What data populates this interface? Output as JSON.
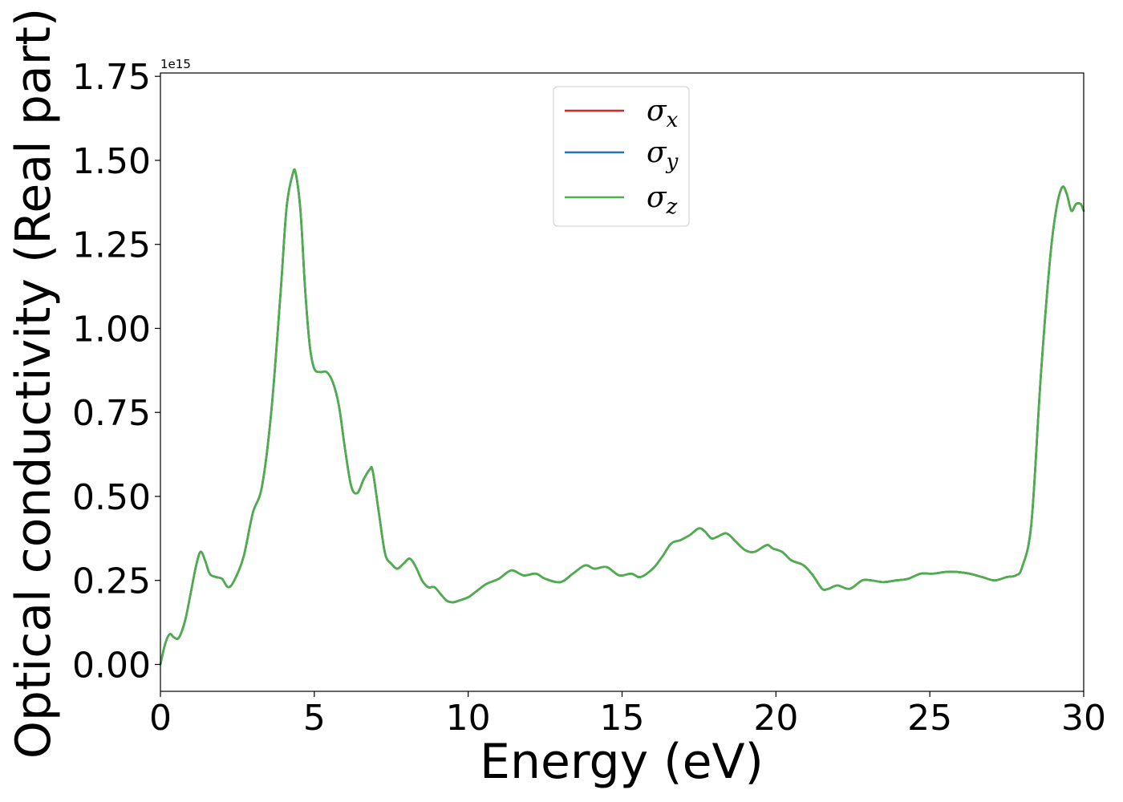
{
  "chart_data": {
    "type": "line",
    "title": "",
    "xlabel": "Energy (eV)",
    "ylabel": "Optical conductivity (Real part)",
    "offset_text": "1e15",
    "xlim": [
      0,
      30
    ],
    "ylim": [
      -0.08,
      1.76
    ],
    "xticks": [
      0,
      5,
      10,
      15,
      20,
      25,
      30
    ],
    "xtick_labels": [
      "0",
      "5",
      "10",
      "15",
      "20",
      "25",
      "30"
    ],
    "yticks": [
      0.0,
      0.25,
      0.5,
      0.75,
      1.0,
      1.25,
      1.5,
      1.75
    ],
    "ytick_labels": [
      "0.00",
      "0.25",
      "0.50",
      "0.75",
      "1.00",
      "1.25",
      "1.50",
      "1.75"
    ],
    "grid": false,
    "legend": {
      "placement": "upper center"
    },
    "y_scale_factor": "1e15",
    "series": [
      {
        "name": "σx",
        "base": "σ",
        "sub": "x",
        "color": "#d62728"
      },
      {
        "name": "σy",
        "base": "σ",
        "sub": "y",
        "color": "#1f77b4"
      },
      {
        "name": "σz",
        "base": "σ",
        "sub": "z",
        "color": "#4daf4a"
      }
    ],
    "x": [
      0.0,
      0.15,
      0.3,
      0.45,
      0.6,
      0.8,
      1.0,
      1.15,
      1.3,
      1.45,
      1.6,
      1.8,
      2.0,
      2.2,
      2.4,
      2.7,
      3.0,
      3.3,
      3.6,
      3.9,
      4.1,
      4.3,
      4.4,
      4.55,
      4.7,
      4.85,
      5.0,
      5.2,
      5.4,
      5.6,
      5.8,
      6.0,
      6.2,
      6.4,
      6.6,
      6.8,
      6.9,
      7.1,
      7.3,
      7.5,
      7.7,
      7.9,
      8.1,
      8.3,
      8.5,
      8.7,
      8.9,
      9.1,
      9.3,
      9.5,
      9.7,
      10.0,
      10.3,
      10.6,
      11.0,
      11.4,
      11.8,
      12.2,
      12.5,
      13.0,
      13.4,
      13.8,
      14.1,
      14.5,
      14.9,
      15.3,
      15.6,
      16.0,
      16.3,
      16.6,
      16.9,
      17.2,
      17.5,
      17.7,
      17.9,
      18.1,
      18.4,
      18.7,
      19.0,
      19.3,
      19.7,
      19.9,
      20.2,
      20.5,
      20.9,
      21.2,
      21.5,
      21.7,
      22.0,
      22.4,
      22.8,
      23.1,
      23.5,
      23.9,
      24.3,
      24.7,
      25.1,
      25.5,
      25.9,
      26.3,
      26.7,
      27.1,
      27.5,
      27.8,
      28.0,
      28.3,
      28.6,
      28.9,
      29.1,
      29.3,
      29.45,
      29.6,
      29.75,
      29.9,
      30.0
    ],
    "y": [
      0.0,
      0.06,
      0.09,
      0.08,
      0.08,
      0.13,
      0.22,
      0.29,
      0.335,
      0.31,
      0.27,
      0.26,
      0.255,
      0.23,
      0.25,
      0.32,
      0.45,
      0.53,
      0.75,
      1.1,
      1.36,
      1.46,
      1.46,
      1.35,
      1.12,
      0.95,
      0.88,
      0.87,
      0.87,
      0.84,
      0.77,
      0.64,
      0.53,
      0.51,
      0.55,
      0.58,
      0.575,
      0.45,
      0.33,
      0.3,
      0.285,
      0.3,
      0.315,
      0.29,
      0.25,
      0.23,
      0.23,
      0.21,
      0.19,
      0.185,
      0.19,
      0.2,
      0.22,
      0.24,
      0.255,
      0.28,
      0.265,
      0.27,
      0.255,
      0.245,
      0.27,
      0.295,
      0.285,
      0.29,
      0.265,
      0.27,
      0.26,
      0.285,
      0.32,
      0.36,
      0.37,
      0.385,
      0.405,
      0.395,
      0.375,
      0.38,
      0.39,
      0.365,
      0.34,
      0.335,
      0.355,
      0.345,
      0.335,
      0.31,
      0.295,
      0.265,
      0.225,
      0.225,
      0.235,
      0.225,
      0.25,
      0.25,
      0.245,
      0.25,
      0.255,
      0.27,
      0.27,
      0.275,
      0.275,
      0.27,
      0.26,
      0.25,
      0.26,
      0.265,
      0.29,
      0.42,
      0.85,
      1.2,
      1.35,
      1.42,
      1.4,
      1.35,
      1.37,
      1.37,
      1.35
    ]
  }
}
